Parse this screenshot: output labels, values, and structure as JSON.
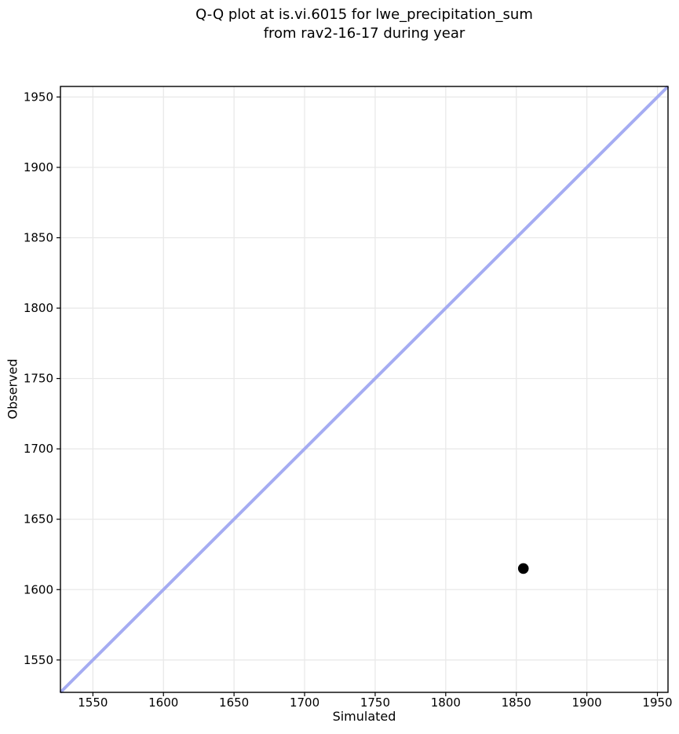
{
  "figure": {
    "title_line1": "Q-Q plot at is.vi.6015 for lwe_precipitation_sum",
    "title_line2": "from rav2-16-17 during year",
    "xlabel": "Simulated",
    "ylabel": "Observed"
  },
  "chart_data": {
    "type": "scatter",
    "title": "Q-Q plot at is.vi.6015 for lwe_precipitation_sum\nfrom rav2-16-17 during year",
    "xlabel": "Simulated",
    "ylabel": "Observed",
    "xlim": [
      1527,
      1957.5
    ],
    "ylim": [
      1527,
      1957.5
    ],
    "xticks": [
      1550,
      1600,
      1650,
      1700,
      1750,
      1800,
      1850,
      1900,
      1950
    ],
    "yticks": [
      1550,
      1600,
      1650,
      1700,
      1750,
      1800,
      1850,
      1900,
      1950
    ],
    "grid": true,
    "legend": false,
    "points": [
      {
        "x": 1855,
        "y": 1615
      }
    ],
    "identity_line": {
      "x1": 1527,
      "y1": 1527,
      "x2": 1957.5,
      "y2": 1957.5
    },
    "colors": {
      "identity_line": "#a5acf2",
      "point": "#000000",
      "grid": "#e9e9e9",
      "spine": "#000000",
      "text": "#000000",
      "background": "#ffffff"
    },
    "style": {
      "line_width": 4,
      "point_radius": 6.8,
      "tick_length": 5
    }
  }
}
